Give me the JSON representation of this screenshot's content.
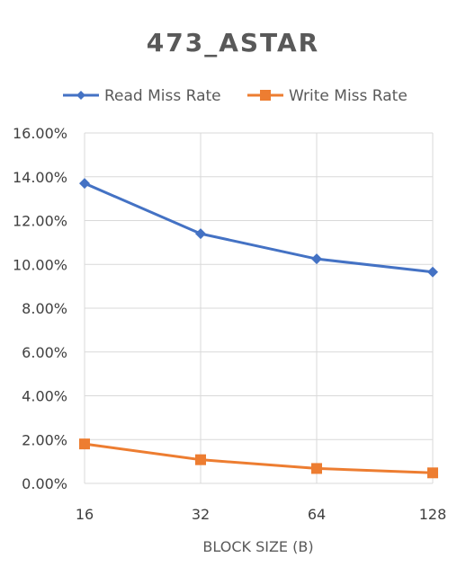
{
  "chart_data": {
    "type": "line",
    "title": "473_ASTAR",
    "xlabel": "BLOCK SIZE (B)",
    "ylabel": "",
    "categories": [
      "16",
      "32",
      "64",
      "128"
    ],
    "yticks": [
      "0.00%",
      "2.00%",
      "4.00%",
      "6.00%",
      "8.00%",
      "10.00%",
      "12.00%",
      "14.00%",
      "16.00%"
    ],
    "ylim": [
      0,
      0.16
    ],
    "grid": true,
    "legend_position": "top",
    "series": [
      {
        "name": "Read Miss Rate",
        "color": "#4472C4",
        "marker": "diamond",
        "values": [
          0.137,
          0.114,
          0.1025,
          0.0965
        ]
      },
      {
        "name": "Write Miss Rate",
        "color": "#ED7D31",
        "marker": "square",
        "values": [
          0.018,
          0.0108,
          0.0068,
          0.0048
        ]
      }
    ]
  }
}
